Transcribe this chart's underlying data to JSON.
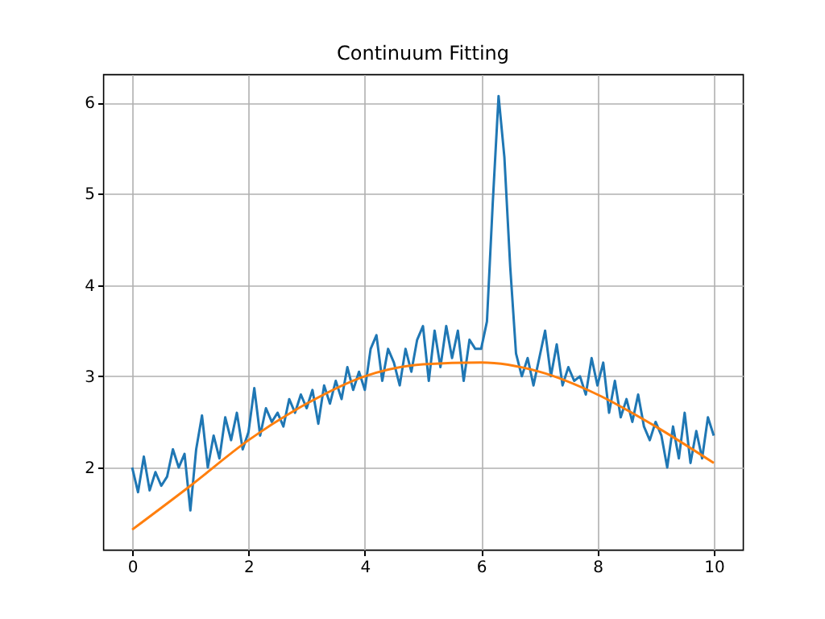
{
  "chart_data": {
    "type": "line",
    "title": "Continuum Fitting",
    "xlim": [
      -0.5,
      10.5
    ],
    "ylim": [
      1.1,
      6.31
    ],
    "xticks": [
      0,
      2,
      4,
      6,
      8,
      10
    ],
    "yticks": [
      2,
      3,
      4,
      5,
      6
    ],
    "grid": true,
    "series": [
      {
        "color": "#1f77b4",
        "x": [
          0.0,
          0.1,
          0.2,
          0.3,
          0.4,
          0.5,
          0.6,
          0.7,
          0.8,
          0.9,
          1.0,
          1.1,
          1.2,
          1.3,
          1.4,
          1.5,
          1.6,
          1.7,
          1.8,
          1.9,
          2.0,
          2.1,
          2.2,
          2.3,
          2.4,
          2.5,
          2.6,
          2.7,
          2.8,
          2.9,
          3.0,
          3.1,
          3.2,
          3.3,
          3.4,
          3.5,
          3.6,
          3.7,
          3.8,
          3.9,
          4.0,
          4.1,
          4.2,
          4.3,
          4.4,
          4.5,
          4.6,
          4.7,
          4.8,
          4.9,
          5.0,
          5.1,
          5.2,
          5.3,
          5.4,
          5.5,
          5.6,
          5.7,
          5.8,
          5.9,
          6.0,
          6.1,
          6.2,
          6.3,
          6.4,
          6.5,
          6.6,
          6.7,
          6.8,
          6.9,
          7.0,
          7.1,
          7.2,
          7.3,
          7.4,
          7.5,
          7.6,
          7.7,
          7.8,
          7.9,
          8.0,
          8.1,
          8.2,
          8.3,
          8.4,
          8.5,
          8.6,
          8.7,
          8.8,
          8.9,
          9.0,
          9.1,
          9.2,
          9.3,
          9.4,
          9.5,
          9.6,
          9.7,
          9.8,
          9.9,
          10.0
        ],
        "values": [
          2.0,
          1.73,
          2.12,
          1.75,
          1.95,
          1.8,
          1.9,
          2.2,
          2.0,
          2.15,
          1.53,
          2.2,
          2.57,
          2.0,
          2.35,
          2.1,
          2.55,
          2.3,
          2.6,
          2.2,
          2.39,
          2.87,
          2.35,
          2.65,
          2.5,
          2.6,
          2.45,
          2.75,
          2.6,
          2.8,
          2.65,
          2.85,
          2.48,
          2.9,
          2.7,
          2.95,
          2.75,
          3.1,
          2.85,
          3.05,
          2.85,
          3.3,
          3.45,
          2.95,
          3.3,
          3.15,
          2.9,
          3.3,
          3.05,
          3.4,
          3.55,
          2.95,
          3.5,
          3.1,
          3.55,
          3.2,
          3.5,
          2.95,
          3.4,
          3.3,
          3.3,
          3.6,
          4.9,
          6.07,
          5.4,
          4.2,
          3.25,
          3.0,
          3.2,
          2.9,
          3.2,
          3.5,
          3.0,
          3.35,
          2.9,
          3.1,
          2.95,
          3.0,
          2.8,
          3.2,
          2.9,
          3.15,
          2.6,
          2.95,
          2.55,
          2.75,
          2.5,
          2.8,
          2.45,
          2.3,
          2.5,
          2.35,
          2.0,
          2.45,
          2.1,
          2.6,
          2.05,
          2.4,
          2.1,
          2.55,
          2.35
        ]
      },
      {
        "color": "#ff7f0e",
        "x": [
          0,
          1,
          2,
          3,
          4,
          5,
          6,
          7,
          8,
          9,
          10
        ],
        "values": [
          1.32,
          1.8,
          2.3,
          2.7,
          3.0,
          3.13,
          3.15,
          3.05,
          2.8,
          2.45,
          2.05
        ]
      }
    ]
  }
}
